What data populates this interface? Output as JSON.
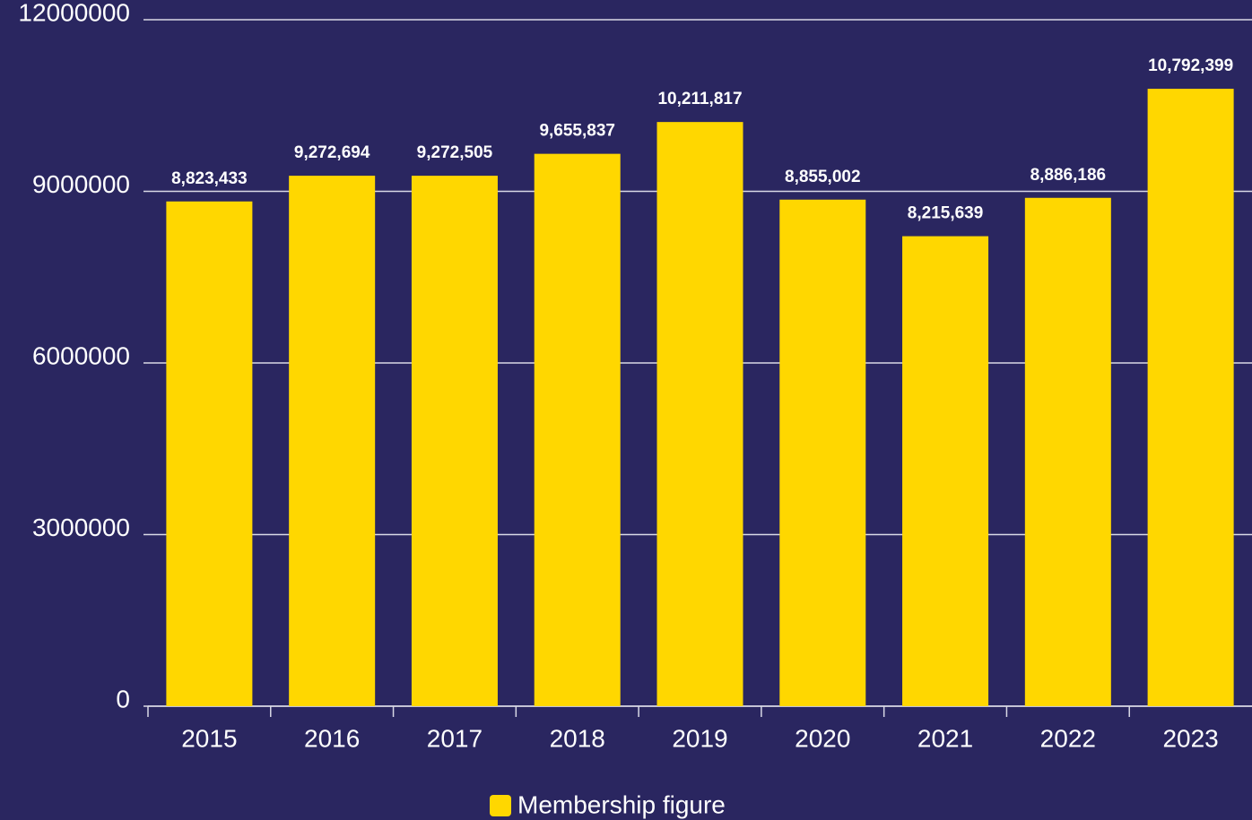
{
  "chart_data": {
    "type": "bar",
    "categories": [
      "2015",
      "2016",
      "2017",
      "2018",
      "2019",
      "2020",
      "2021",
      "2022",
      "2023"
    ],
    "series": [
      {
        "name": "Membership figure",
        "color": "#ffd700",
        "values": [
          8823433,
          9272694,
          9272505,
          9655837,
          10211817,
          8855002,
          8215639,
          8886186,
          10792399
        ],
        "value_labels": [
          "8,823,433",
          "9,272,694",
          "9,272,505",
          "9,655,837",
          "10,211,817",
          "8,855,002",
          "8,215,639",
          "8,886,186",
          "10,792,399"
        ]
      }
    ],
    "ylim": [
      0,
      12000000
    ],
    "yticks": [
      0,
      3000000,
      6000000,
      9000000,
      12000000
    ],
    "grid": true,
    "legend": "bottom"
  }
}
